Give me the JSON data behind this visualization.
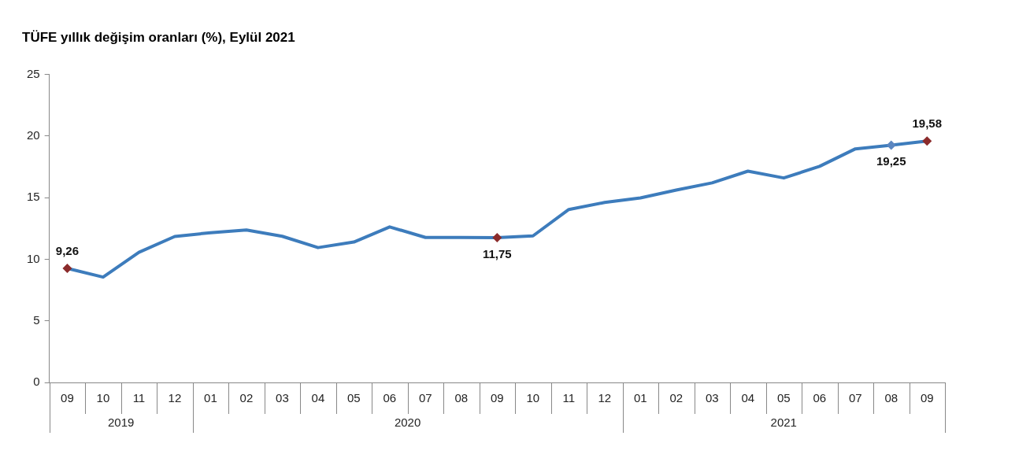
{
  "chart_data": {
    "type": "line",
    "title": "TÜFE yıllık değişim oranları (%), Eylül 2021",
    "categories": [
      "09",
      "10",
      "11",
      "12",
      "01",
      "02",
      "03",
      "04",
      "05",
      "06",
      "07",
      "08",
      "09",
      "10",
      "11",
      "12",
      "01",
      "02",
      "03",
      "04",
      "05",
      "06",
      "07",
      "08",
      "09"
    ],
    "annotations": [
      "2019",
      "2020",
      "2021"
    ],
    "series": [
      {
        "color": "#3d7cbc",
        "values": [
          9.26,
          8.55,
          10.56,
          11.84,
          12.15,
          12.37,
          11.86,
          10.94,
          11.39,
          12.62,
          11.76,
          11.77,
          11.75,
          11.89,
          14.03,
          14.6,
          14.97,
          15.61,
          16.19,
          17.14,
          16.59,
          17.53,
          18.95,
          19.25,
          19.58
        ],
        "value_labels": [
          "9,26",
          null,
          null,
          null,
          null,
          null,
          null,
          null,
          null,
          null,
          null,
          null,
          "11,75",
          null,
          null,
          null,
          null,
          null,
          null,
          null,
          null,
          null,
          null,
          "19,25",
          "19,58"
        ],
        "colors": [
          "#8b2b2b",
          null,
          null,
          null,
          null,
          null,
          null,
          null,
          null,
          null,
          null,
          null,
          "#8b2b2b",
          null,
          null,
          null,
          null,
          null,
          null,
          null,
          null,
          null,
          null,
          "#5b86c0",
          "#8b2b2b"
        ]
      }
    ],
    "line_style": "solid",
    "ylim": [
      0,
      25
    ],
    "yticks": [
      0,
      5,
      10,
      15,
      20,
      25
    ],
    "grid": false,
    "legend": false
  }
}
